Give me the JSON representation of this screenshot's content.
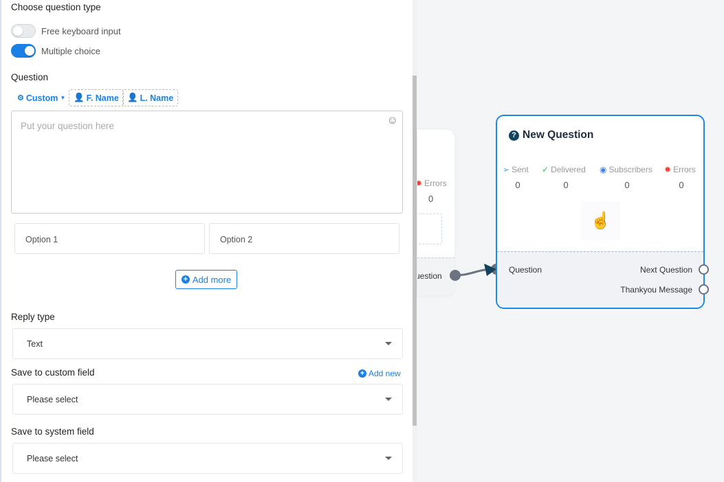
{
  "panel": {
    "question_type_title": "Choose question type",
    "toggles": [
      {
        "label": "Free keyboard input",
        "on": false
      },
      {
        "label": "Multiple choice",
        "on": true
      }
    ],
    "question_label": "Question",
    "chips": {
      "custom": "Custom",
      "first_name": "F. Name",
      "last_name": "L. Name"
    },
    "question_placeholder": "Put your question here",
    "options": [
      "Option 1",
      "Option 2"
    ],
    "add_more": "Add more",
    "reply_type_label": "Reply type",
    "reply_type_value": "Text",
    "custom_field_label": "Save to custom field",
    "add_new": "Add new",
    "custom_field_value": "Please select",
    "system_field_label": "Save to system field",
    "system_field_value": "Please select"
  },
  "prev_node": {
    "errors_label": "Errors",
    "errors_value": "0",
    "port_label": "uestion"
  },
  "node": {
    "title": "New Question",
    "stats": [
      {
        "label": "Sent",
        "value": "0",
        "color": "#4aa3e8"
      },
      {
        "label": "Delivered",
        "value": "0",
        "color": "#2fbf5b"
      },
      {
        "label": "Subscribers",
        "value": "0",
        "color": "#3b82f6"
      },
      {
        "label": "Errors",
        "value": "0",
        "color": "#f44336"
      }
    ],
    "input_port": "Question",
    "outputs": [
      "Next Question",
      "Thankyou Message"
    ]
  },
  "colors": {
    "accent": "#1a80e6",
    "node_border": "#1e88e5",
    "connector": "#6b7280"
  }
}
